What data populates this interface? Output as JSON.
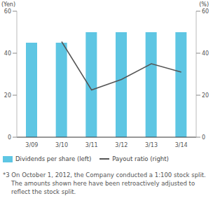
{
  "chart_data": {
    "type": "bar",
    "categories": [
      "3/09",
      "3/10",
      "3/11",
      "3/12",
      "3/13",
      "3/14"
    ],
    "series": [
      {
        "name": "Dividends per share (left)",
        "type": "bar",
        "color": "#5ec6e3",
        "values": [
          45,
          45,
          50,
          50,
          50,
          50
        ]
      },
      {
        "name": "Payout ratio (right)",
        "type": "line",
        "axis": "y2",
        "color": "#555555",
        "values": [
          null,
          45.5,
          22.5,
          27.5,
          35,
          31
        ]
      }
    ],
    "ylabel": "(Yen)",
    "y2label": "(%)",
    "ylim": [
      0,
      60
    ],
    "yticks": [
      0,
      20,
      40,
      60
    ],
    "y2lim": [
      0,
      60
    ],
    "y2ticks": [
      0,
      20,
      40,
      60
    ],
    "grid": false,
    "legend": "bottom",
    "annotation": "*3 On October 1, 2012, the Company conducted a 1:100 stock split. The amounts shown here have been retroactively adjusted to reflect the stock split."
  }
}
